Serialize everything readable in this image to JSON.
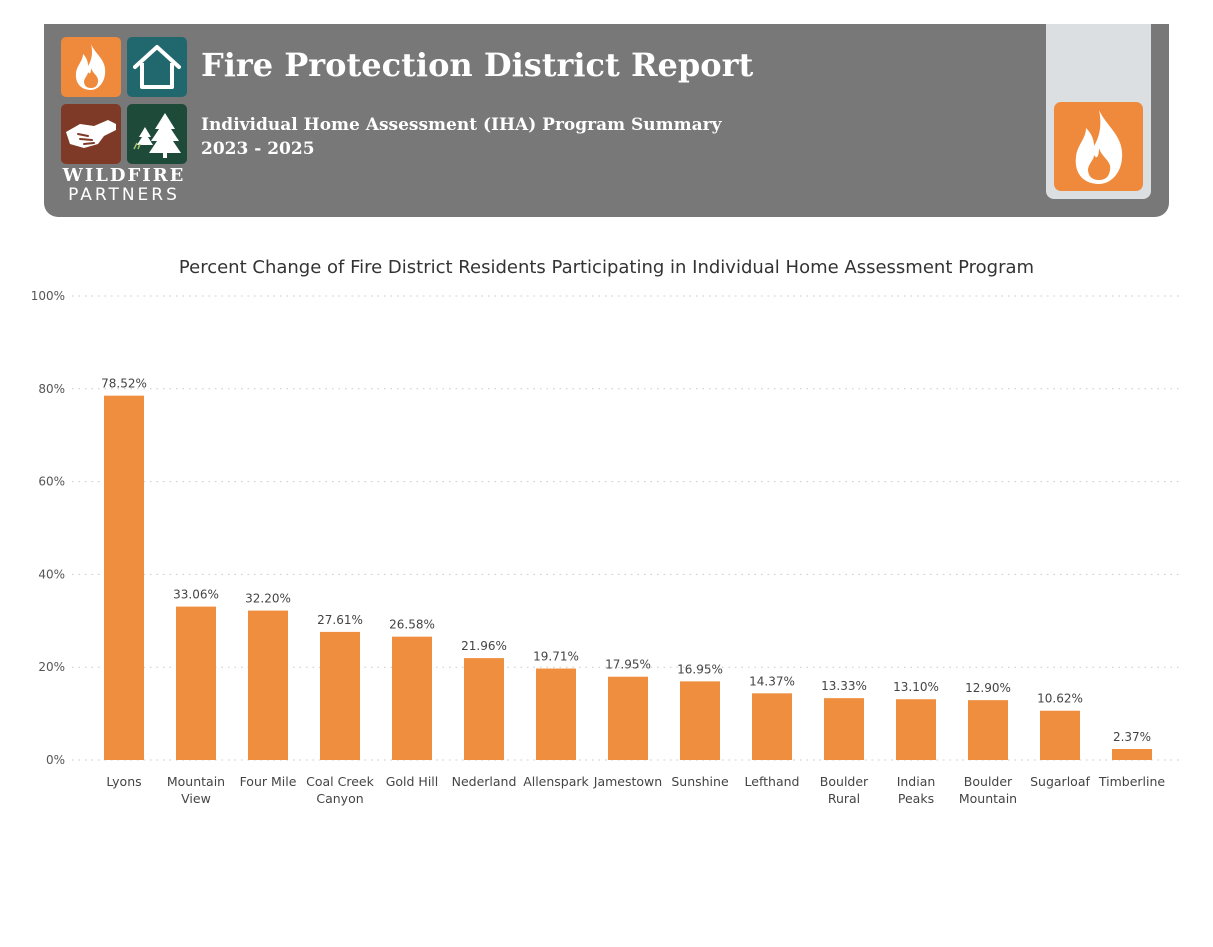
{
  "header": {
    "title": "Fire Protection District Report",
    "subtitle": "Individual Home Assessment (IHA) Program Summary",
    "years": "2023 - 2025",
    "brand_line1": "WILDFIRE",
    "brand_line2": "PARTNERS",
    "colors": {
      "banner": "#787878",
      "orange": "#ef8a3c",
      "teal": "#20686e",
      "brown": "#7e3a26",
      "dark_green": "#1e4a3a",
      "side_panel": "#dcdfe2"
    },
    "icons": [
      "flame-icon",
      "house-icon",
      "handshake-icon",
      "trees-icon",
      "flame-icon"
    ]
  },
  "chart_data": {
    "type": "bar",
    "title": "Percent Change of Fire District Residents Participating in Individual Home Assessment Program",
    "xlabel": "",
    "ylabel": "",
    "ylim": [
      0,
      100
    ],
    "yticks": [
      0,
      20,
      40,
      60,
      80,
      100
    ],
    "ytick_labels": [
      "0%",
      "20%",
      "40%",
      "60%",
      "80%",
      "100%"
    ],
    "grid": true,
    "bar_color": "#ef8e3f",
    "categories": [
      [
        "Lyons"
      ],
      [
        "Mountain",
        "View"
      ],
      [
        "Four Mile"
      ],
      [
        "Coal Creek",
        "Canyon"
      ],
      [
        "Gold Hill"
      ],
      [
        "Nederland"
      ],
      [
        "Allenspark"
      ],
      [
        "Jamestown"
      ],
      [
        "Sunshine"
      ],
      [
        "Lefthand"
      ],
      [
        "Boulder",
        "Rural"
      ],
      [
        "Indian",
        "Peaks"
      ],
      [
        "Boulder",
        "Mountain"
      ],
      [
        "Sugarloaf"
      ],
      [
        "Timberline"
      ]
    ],
    "values": [
      78.52,
      33.06,
      32.2,
      27.61,
      26.58,
      21.96,
      19.71,
      17.95,
      16.95,
      14.37,
      13.33,
      13.1,
      12.9,
      10.62,
      2.37
    ],
    "data_labels": [
      "78.52%",
      "33.06%",
      "32.20%",
      "27.61%",
      "26.58%",
      "21.96%",
      "19.71%",
      "17.95%",
      "16.95%",
      "14.37%",
      "13.33%",
      "13.10%",
      "12.90%",
      "10.62%",
      "2.37%"
    ]
  }
}
